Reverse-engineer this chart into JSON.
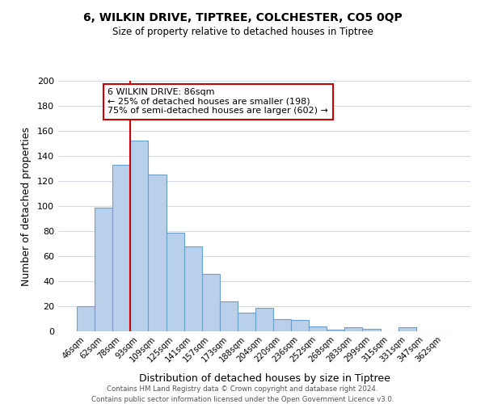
{
  "title": "6, WILKIN DRIVE, TIPTREE, COLCHESTER, CO5 0QP",
  "subtitle": "Size of property relative to detached houses in Tiptree",
  "xlabel": "Distribution of detached houses by size in Tiptree",
  "ylabel": "Number of detached properties",
  "bar_labels": [
    "46sqm",
    "62sqm",
    "78sqm",
    "93sqm",
    "109sqm",
    "125sqm",
    "141sqm",
    "157sqm",
    "173sqm",
    "188sqm",
    "204sqm",
    "220sqm",
    "236sqm",
    "252sqm",
    "268sqm",
    "283sqm",
    "299sqm",
    "315sqm",
    "331sqm",
    "347sqm",
    "362sqm"
  ],
  "bar_values": [
    20,
    99,
    133,
    152,
    125,
    79,
    68,
    46,
    24,
    15,
    19,
    10,
    9,
    4,
    1,
    3,
    2,
    0,
    3,
    0,
    0
  ],
  "bar_color": "#b8d0ea",
  "bar_edge_color": "#6aa0cc",
  "ylim": [
    0,
    200
  ],
  "yticks": [
    0,
    20,
    40,
    60,
    80,
    100,
    120,
    140,
    160,
    180,
    200
  ],
  "vline_color": "#cc0000",
  "annotation_title": "6 WILKIN DRIVE: 86sqm",
  "annotation_line1": "← 25% of detached houses are smaller (198)",
  "annotation_line2": "75% of semi-detached houses are larger (602) →",
  "annotation_box_color": "#ffffff",
  "annotation_box_edge": "#cc0000",
  "footer1": "Contains HM Land Registry data © Crown copyright and database right 2024.",
  "footer2": "Contains public sector information licensed under the Open Government Licence v3.0.",
  "background_color": "#ffffff",
  "grid_color": "#d0d8e8"
}
